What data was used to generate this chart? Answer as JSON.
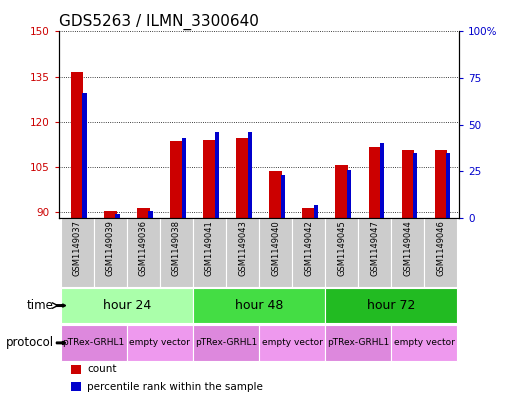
{
  "title": "GDS5263 / ILMN_3300640",
  "samples": [
    "GSM1149037",
    "GSM1149039",
    "GSM1149036",
    "GSM1149038",
    "GSM1149041",
    "GSM1149043",
    "GSM1149040",
    "GSM1149042",
    "GSM1149045",
    "GSM1149047",
    "GSM1149044",
    "GSM1149046"
  ],
  "red_values": [
    136.5,
    90.2,
    91.5,
    113.5,
    114.0,
    114.5,
    103.5,
    91.5,
    105.5,
    111.5,
    110.5,
    110.5
  ],
  "blue_values_pct": [
    67,
    2,
    4,
    43,
    46,
    46,
    23,
    7,
    26,
    40,
    35,
    35
  ],
  "ylim_left": [
    88,
    150
  ],
  "ylim_right": [
    0,
    100
  ],
  "yticks_left": [
    90,
    105,
    120,
    135,
    150
  ],
  "yticks_right": [
    0,
    25,
    50,
    75,
    100
  ],
  "ytick_labels_left": [
    "90",
    "105",
    "120",
    "135",
    "150"
  ],
  "ytick_labels_right": [
    "0",
    "25",
    "50",
    "75",
    "100%"
  ],
  "red_color": "#cc0000",
  "blue_color": "#0000cc",
  "time_groups": [
    {
      "label": "hour 24",
      "start": 0,
      "end": 3,
      "color": "#aaffaa"
    },
    {
      "label": "hour 48",
      "start": 4,
      "end": 7,
      "color": "#44dd44"
    },
    {
      "label": "hour 72",
      "start": 8,
      "end": 11,
      "color": "#22bb22"
    }
  ],
  "protocol_groups": [
    {
      "label": "pTRex-GRHL1",
      "start": 0,
      "end": 1,
      "color": "#dd88dd"
    },
    {
      "label": "empty vector",
      "start": 2,
      "end": 3,
      "color": "#ee99ee"
    },
    {
      "label": "pTRex-GRHL1",
      "start": 4,
      "end": 5,
      "color": "#dd88dd"
    },
    {
      "label": "empty vector",
      "start": 6,
      "end": 7,
      "color": "#ee99ee"
    },
    {
      "label": "pTRex-GRHL1",
      "start": 8,
      "end": 9,
      "color": "#dd88dd"
    },
    {
      "label": "empty vector",
      "start": 10,
      "end": 11,
      "color": "#ee99ee"
    }
  ],
  "sample_bg_color": "#cccccc",
  "legend_items": [
    {
      "color": "#cc0000",
      "label": "count"
    },
    {
      "color": "#0000cc",
      "label": "percentile rank within the sample"
    }
  ],
  "title_fontsize": 11,
  "tick_fontsize": 7.5,
  "label_fontsize": 9,
  "sample_fontsize": 6,
  "row_label_fontsize": 8.5
}
